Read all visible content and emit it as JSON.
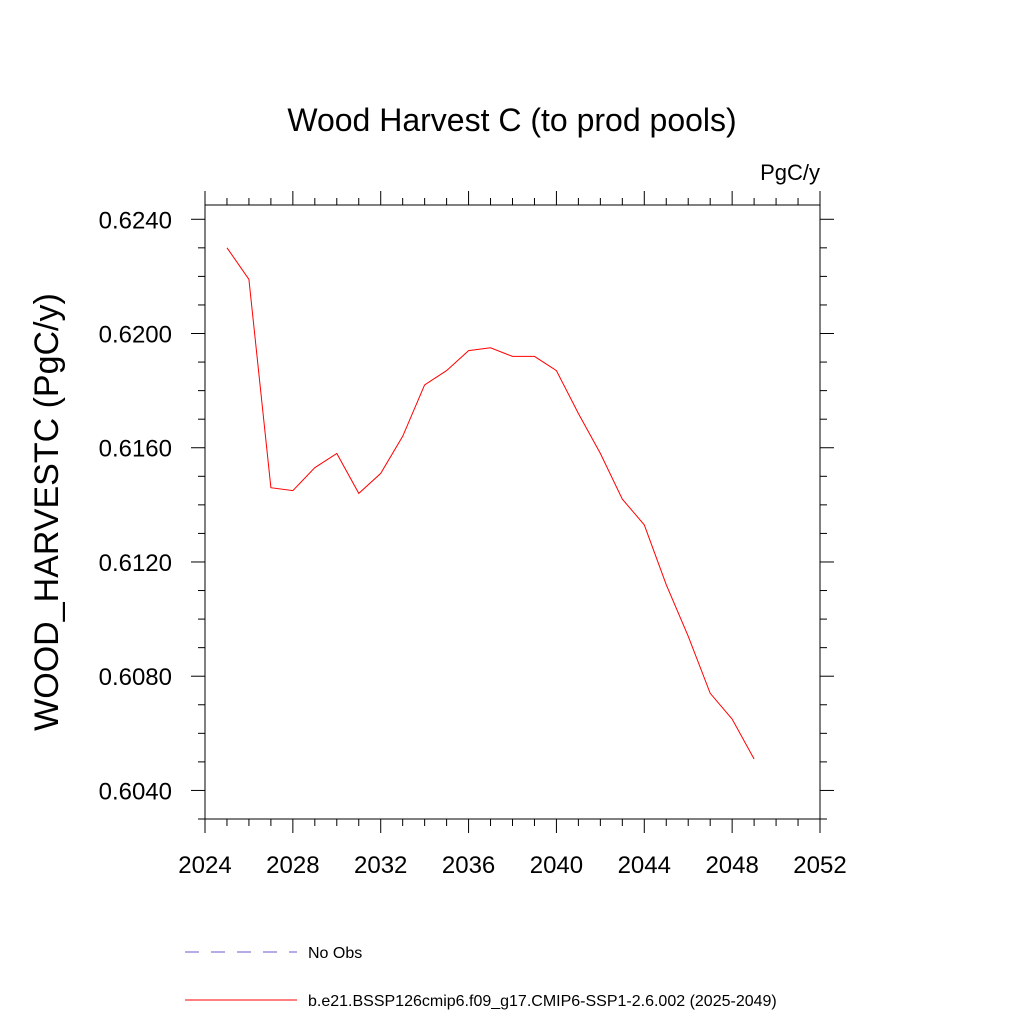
{
  "chart_data": {
    "type": "line",
    "title": "Wood Harvest C (to prod pools)",
    "units": "PgC/y",
    "ylabel": "WOOD_HARVESTC  (PgC/y)",
    "xlabel": "",
    "xlim": [
      2024,
      2052
    ],
    "ylim": [
      0.603,
      0.6245
    ],
    "x_ticks": [
      2024,
      2028,
      2032,
      2036,
      2040,
      2044,
      2048,
      2052
    ],
    "x_tick_labels": [
      "2024",
      "2028",
      "2032",
      "2036",
      "2040",
      "2044",
      "2048",
      "2052"
    ],
    "y_ticks": [
      0.604,
      0.608,
      0.612,
      0.616,
      0.62,
      0.624
    ],
    "y_tick_labels": [
      "0.6040",
      "0.6080",
      "0.6120",
      "0.6160",
      "0.6200",
      "0.6240"
    ],
    "grid": false,
    "series": [
      {
        "name": "b.e21.BSSP126cmip6.f09_g17.CMIP6-SSP1-2.6.002 (2025-2049)",
        "color": "#ff0000",
        "style": "solid",
        "x": [
          2025,
          2026,
          2027,
          2028,
          2029,
          2030,
          2031,
          2032,
          2033,
          2034,
          2035,
          2036,
          2037,
          2038,
          2039,
          2040,
          2041,
          2042,
          2043,
          2044,
          2045,
          2046,
          2047,
          2048,
          2049
        ],
        "values": [
          0.623,
          0.6219,
          0.6146,
          0.6145,
          0.6153,
          0.6158,
          0.6144,
          0.6151,
          0.6164,
          0.6182,
          0.6187,
          0.6194,
          0.6195,
          0.6192,
          0.6192,
          0.6187,
          0.6172,
          0.6158,
          0.6142,
          0.6133,
          0.6112,
          0.6094,
          0.6074,
          0.6065,
          0.6051
        ]
      }
    ],
    "legend": [
      {
        "label": "No Obs",
        "color": "#6a5acd",
        "style": "dashed"
      },
      {
        "label": "b.e21.BSSP126cmip6.f09_g17.CMIP6-SSP1-2.6.002 (2025-2049)",
        "color": "#ff0000",
        "style": "solid"
      }
    ]
  }
}
